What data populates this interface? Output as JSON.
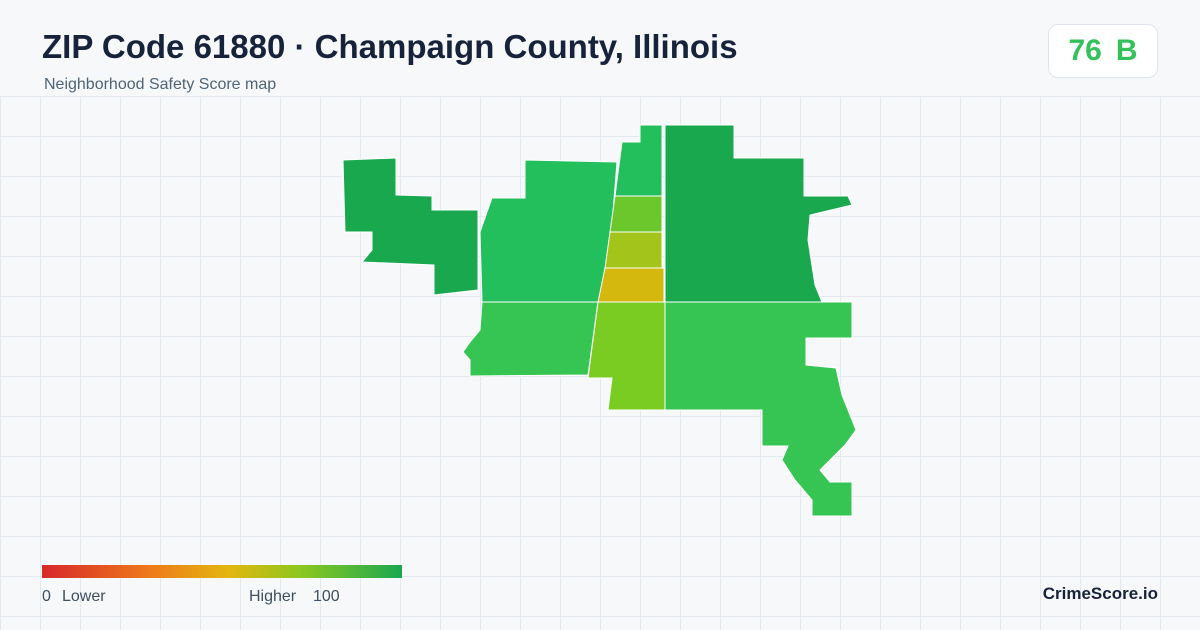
{
  "header": {
    "title": "ZIP Code 61880 · Champaign County, Illinois",
    "subtitle": "Neighborhood Safety Score map"
  },
  "badge": {
    "score": "76",
    "grade": "B"
  },
  "legend": {
    "min": "0",
    "min_label": "Lower",
    "max_label": "Higher",
    "max": "100"
  },
  "footer": {
    "brand": "CrimeScore.io"
  }
}
